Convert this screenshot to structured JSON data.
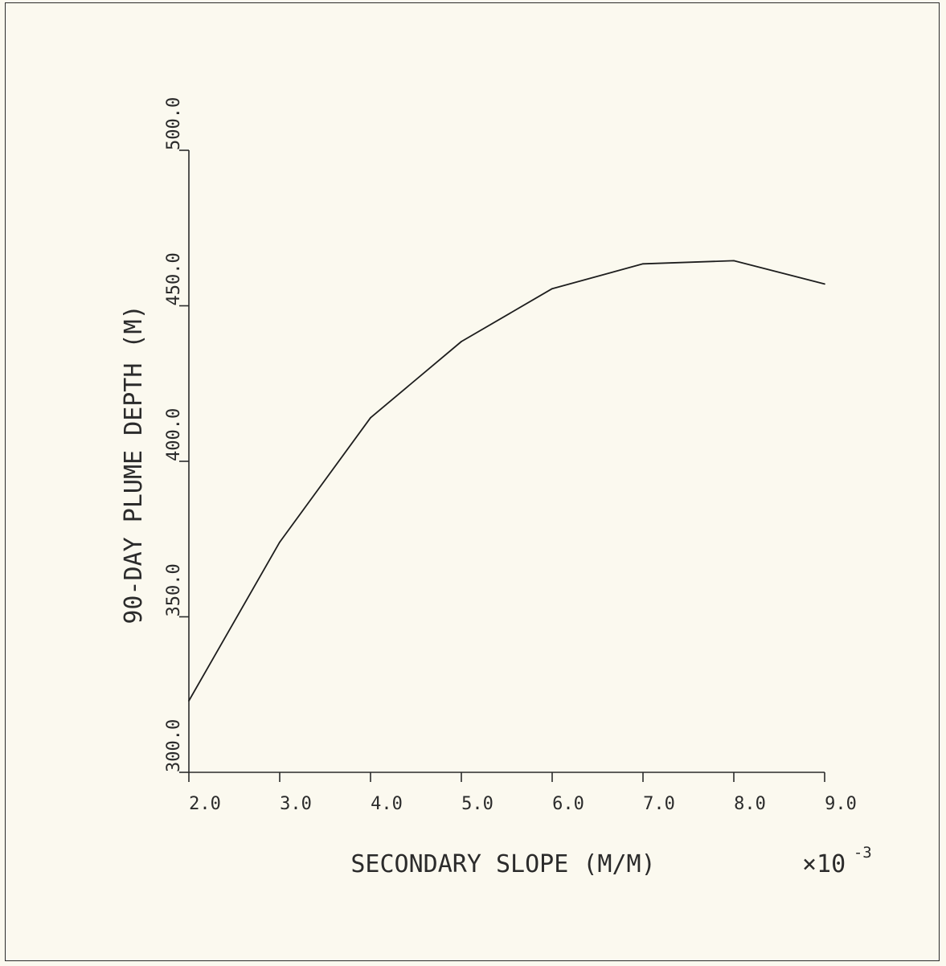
{
  "chart_data": {
    "type": "line",
    "title": "",
    "xlabel": "SECONDARY SLOPE (M/M)",
    "ylabel": "90-DAY PLUME DEPTH (M)",
    "x_multiplier_label": "×10",
    "x_multiplier_exponent": "-3",
    "xlim": [
      2.0,
      9.0
    ],
    "ylim": [
      300.0,
      500.0
    ],
    "x_ticks": [
      2.0,
      3.0,
      4.0,
      5.0,
      6.0,
      7.0,
      8.0,
      9.0
    ],
    "x_tick_labels": [
      "2.0",
      "3.0",
      "4.0",
      "5.0",
      "6.0",
      "7.0",
      "8.0",
      "9.0"
    ],
    "y_ticks": [
      300.0,
      350.0,
      400.0,
      450.0,
      500.0
    ],
    "y_tick_labels": [
      "300.0",
      "350.0",
      "400.0",
      "450.0",
      "500.0"
    ],
    "grid": false,
    "series": [
      {
        "x": [
          2.0,
          3.0,
          4.0,
          5.0,
          6.0,
          7.0,
          8.0,
          9.0
        ],
        "y": [
          323.0,
          374.0,
          414.0,
          438.5,
          455.5,
          463.5,
          464.5,
          457.0
        ]
      }
    ],
    "line_color": "#1e1e1e"
  }
}
